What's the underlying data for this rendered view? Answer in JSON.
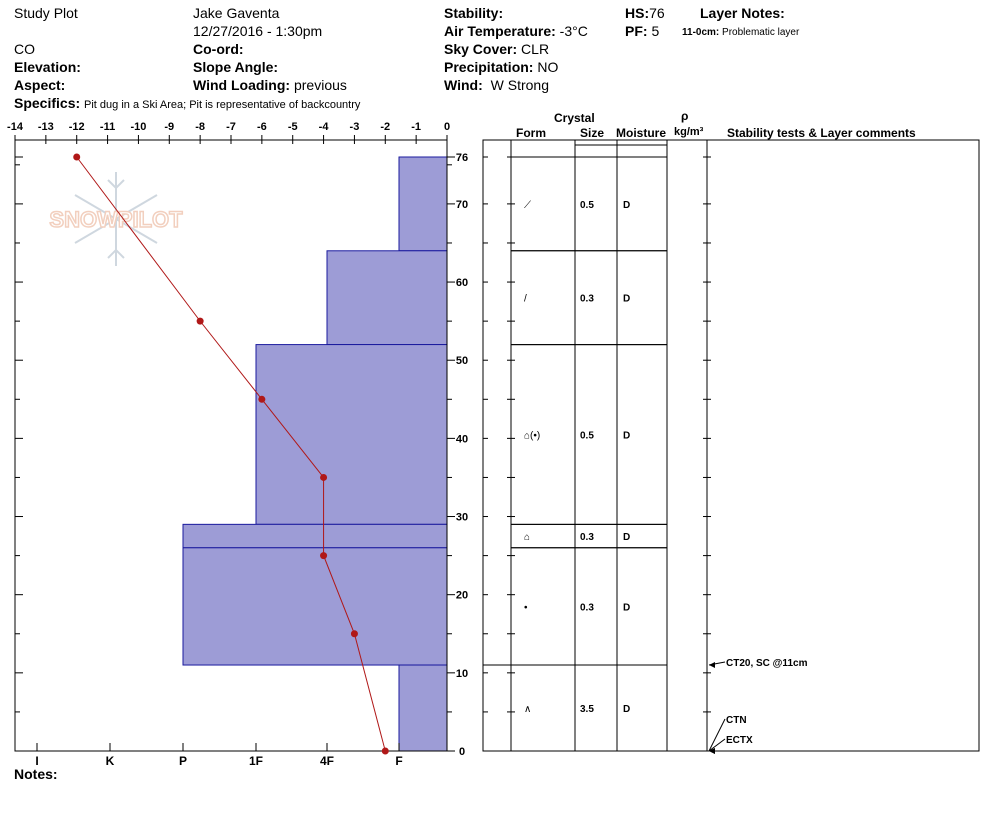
{
  "header": {
    "site": "Study Plot",
    "observer": "Jake Gaventa",
    "datetime": "12/27/2016 - 1:30pm",
    "state": "CO",
    "elevation_label": "Elevation:",
    "coord_label": "Co-ord:",
    "aspect_label": "Aspect:",
    "slope_label": "Slope Angle:",
    "wind_loading_label": "Wind Loading:",
    "wind_loading_value": "previous",
    "specifics_label": "Specifics:",
    "specifics_value": "Pit dug in a Ski Area; Pit is representative of backcountry",
    "stability_label": "Stability:",
    "air_temp_label": "Air Temperature:",
    "air_temp_value": "-3°C",
    "sky_label": "Sky Cover:",
    "sky_value": "CLR",
    "precip_label": "Precipitation:",
    "precip_value": "NO",
    "wind_label": "Wind:",
    "wind_value": "W Strong",
    "hs_label": "HS:",
    "hs_value": "76",
    "pf_label": "PF:",
    "pf_value": "5",
    "layer_notes_label": "Layer Notes:",
    "layer_note_range": "11-0cm:",
    "layer_note_text": "Problematic layer"
  },
  "logo": {
    "text": "SNOWPILOT"
  },
  "columns": {
    "crystal": "Crystal",
    "form": "Form",
    "size": "Size",
    "moisture": "Moisture",
    "rho": "ρ",
    "density_unit": "kg/m³",
    "stability": "Stability tests & Layer comments"
  },
  "notes_label": "Notes:",
  "chart_data": {
    "type": "snow-profile",
    "temp_axis": {
      "range": [
        -14,
        0
      ],
      "ticks": [
        -14,
        -13,
        -12,
        -11,
        -10,
        -9,
        -8,
        -7,
        -6,
        -5,
        -4,
        -3,
        -2,
        -1,
        0
      ]
    },
    "depth_axis": {
      "range": [
        0,
        76
      ],
      "ticks": [
        0,
        10,
        20,
        30,
        40,
        50,
        60,
        70,
        76
      ]
    },
    "hardness_labels": [
      "I",
      "K",
      "P",
      "1F",
      "4F",
      "F"
    ],
    "temperature_profile": [
      {
        "temp": -12,
        "depth": 76
      },
      {
        "temp": -8,
        "depth": 55
      },
      {
        "temp": -6,
        "depth": 45
      },
      {
        "temp": -4,
        "depth": 35
      },
      {
        "temp": -4,
        "depth": 25
      },
      {
        "temp": -3,
        "depth": 15
      },
      {
        "temp": -2,
        "depth": 0
      }
    ],
    "layers": [
      {
        "top": 76,
        "bottom": 64,
        "hardness": "F",
        "form": "⟋",
        "size": "0.5",
        "moisture": "D"
      },
      {
        "top": 64,
        "bottom": 52,
        "hardness": "4F+",
        "form": "/",
        "size": "0.3",
        "moisture": "D"
      },
      {
        "top": 52,
        "bottom": 29,
        "hardness": "1F",
        "form": "⌂(•)",
        "size": "0.5",
        "moisture": "D"
      },
      {
        "top": 29,
        "bottom": 26,
        "hardness": "P-",
        "form": "⌂",
        "size": "0.3",
        "moisture": "D"
      },
      {
        "top": 26,
        "bottom": 11,
        "hardness": "P-",
        "form": "•",
        "size": "0.3",
        "moisture": "D"
      },
      {
        "top": 11,
        "bottom": 0,
        "hardness": "F",
        "form": "∧",
        "size": "3.5",
        "moisture": "D"
      }
    ],
    "stability_tests": [
      {
        "depth": 11,
        "text": "CT20, SC @11cm"
      },
      {
        "depth": 0,
        "text": "CTN"
      },
      {
        "depth": 0,
        "text": "ECTX"
      }
    ]
  }
}
